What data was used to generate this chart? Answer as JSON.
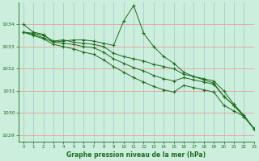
{
  "title": "Graphe pression niveau de la mer (hPa)",
  "background_color": "#cceedd",
  "grid_color": "#aacccc",
  "line_color": "#1e6b1e",
  "xlim": [
    -0.5,
    23
  ],
  "ylim": [
    1028.7,
    1035.0
  ],
  "yticks": [
    1029,
    1030,
    1031,
    1032,
    1033,
    1034
  ],
  "xticks": [
    0,
    1,
    2,
    3,
    4,
    5,
    6,
    7,
    8,
    9,
    10,
    11,
    12,
    13,
    14,
    15,
    16,
    17,
    18,
    19,
    20,
    21,
    22,
    23
  ],
  "lines": [
    {
      "x": [
        0,
        1,
        2,
        3,
        4,
        5,
        6,
        7,
        8,
        9,
        10,
        11,
        12,
        13,
        14,
        15,
        16,
        17,
        18,
        19,
        20,
        21,
        22,
        23
      ],
      "y": [
        1034.0,
        1033.65,
        1033.55,
        1033.2,
        1033.25,
        1033.3,
        1033.3,
        1033.25,
        1033.15,
        1033.05,
        1034.15,
        1034.85,
        1033.6,
        1033.0,
        1032.55,
        1032.25,
        1031.85,
        1031.65,
        1031.5,
        1031.35,
        1030.75,
        1030.35,
        1029.85,
        1029.3
      ]
    },
    {
      "x": [
        0,
        1,
        2,
        3,
        4,
        5,
        6,
        7,
        8,
        9,
        10,
        11,
        12,
        13,
        14,
        15,
        16,
        17,
        18,
        19,
        20,
        21,
        22,
        23
      ],
      "y": [
        1033.65,
        1033.6,
        1033.5,
        1033.25,
        1033.3,
        1033.2,
        1033.15,
        1033.1,
        1033.0,
        1032.7,
        1032.55,
        1032.45,
        1032.35,
        1032.2,
        1032.1,
        1032.0,
        1031.75,
        1031.65,
        1031.55,
        1031.45,
        1031.0,
        1030.4,
        1029.9,
        1029.3
      ]
    },
    {
      "x": [
        0,
        1,
        2,
        3,
        4,
        5,
        6,
        7,
        8,
        9,
        10,
        11,
        12,
        13,
        14,
        15,
        16,
        17,
        18,
        19,
        20,
        21,
        22,
        23
      ],
      "y": [
        1033.65,
        1033.55,
        1033.4,
        1033.2,
        1033.15,
        1033.1,
        1033.0,
        1032.95,
        1032.75,
        1032.45,
        1032.25,
        1032.05,
        1031.9,
        1031.7,
        1031.55,
        1031.45,
        1031.6,
        1031.5,
        1031.4,
        1031.3,
        1030.75,
        1030.35,
        1029.85,
        1029.3
      ]
    },
    {
      "x": [
        0,
        1,
        2,
        3,
        4,
        5,
        6,
        7,
        8,
        9,
        10,
        11,
        12,
        13,
        14,
        15,
        16,
        17,
        18,
        19,
        20,
        21,
        22,
        23
      ],
      "y": [
        1033.65,
        1033.5,
        1033.35,
        1033.1,
        1033.0,
        1032.9,
        1032.75,
        1032.65,
        1032.4,
        1032.1,
        1031.85,
        1031.6,
        1031.4,
        1031.2,
        1031.05,
        1030.95,
        1031.25,
        1031.15,
        1031.05,
        1030.95,
        1030.35,
        1030.1,
        1029.85,
        1029.3
      ]
    }
  ]
}
